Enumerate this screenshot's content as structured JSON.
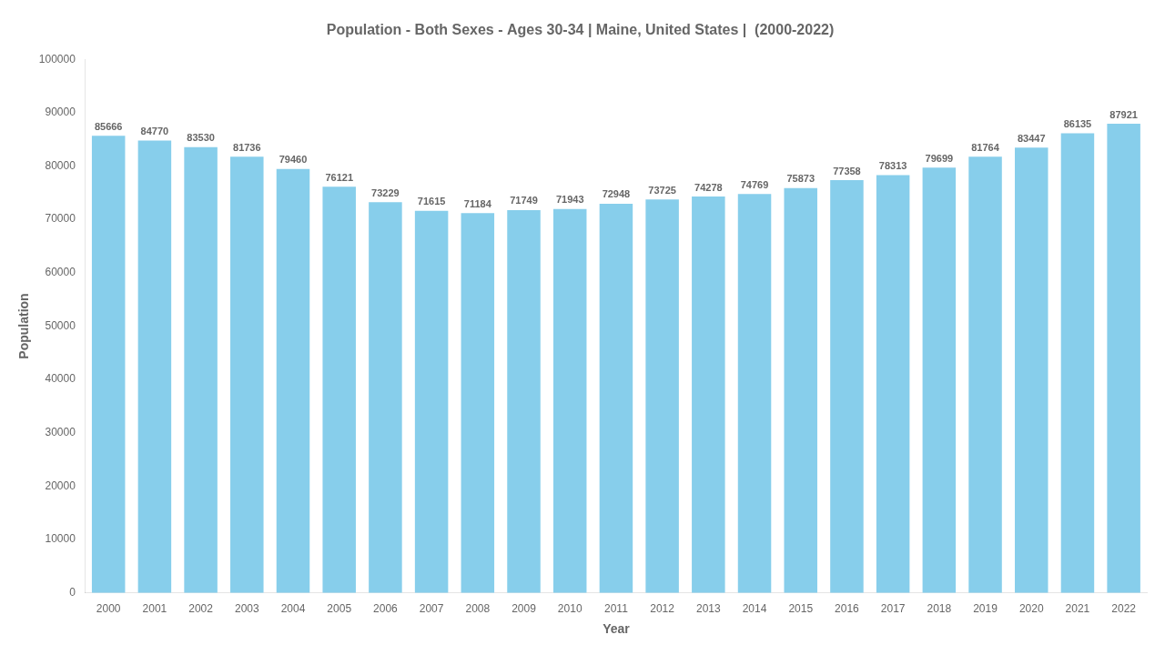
{
  "chart_data": {
    "type": "bar",
    "title": "Population - Both Sexes - Ages 30-34 | Maine, United States |  (2000-2022)",
    "x_label": "Year",
    "y_label": "Population",
    "categories": [
      "2000",
      "2001",
      "2002",
      "2003",
      "2004",
      "2005",
      "2006",
      "2007",
      "2008",
      "2009",
      "2010",
      "2011",
      "2012",
      "2013",
      "2014",
      "2015",
      "2016",
      "2017",
      "2018",
      "2019",
      "2020",
      "2021",
      "2022"
    ],
    "values": [
      85666,
      84770,
      83530,
      81736,
      79460,
      76121,
      73229,
      71615,
      71184,
      71749,
      71943,
      72948,
      73725,
      74278,
      74769,
      75873,
      77358,
      78313,
      79699,
      81764,
      83447,
      86135,
      87921
    ],
    "color": "#87ceeb",
    "ylim": [
      0,
      100000
    ],
    "yticks": [
      0,
      10000,
      20000,
      30000,
      40000,
      50000,
      60000,
      70000,
      80000,
      90000,
      100000
    ],
    "grid": false,
    "data_labels": true
  }
}
